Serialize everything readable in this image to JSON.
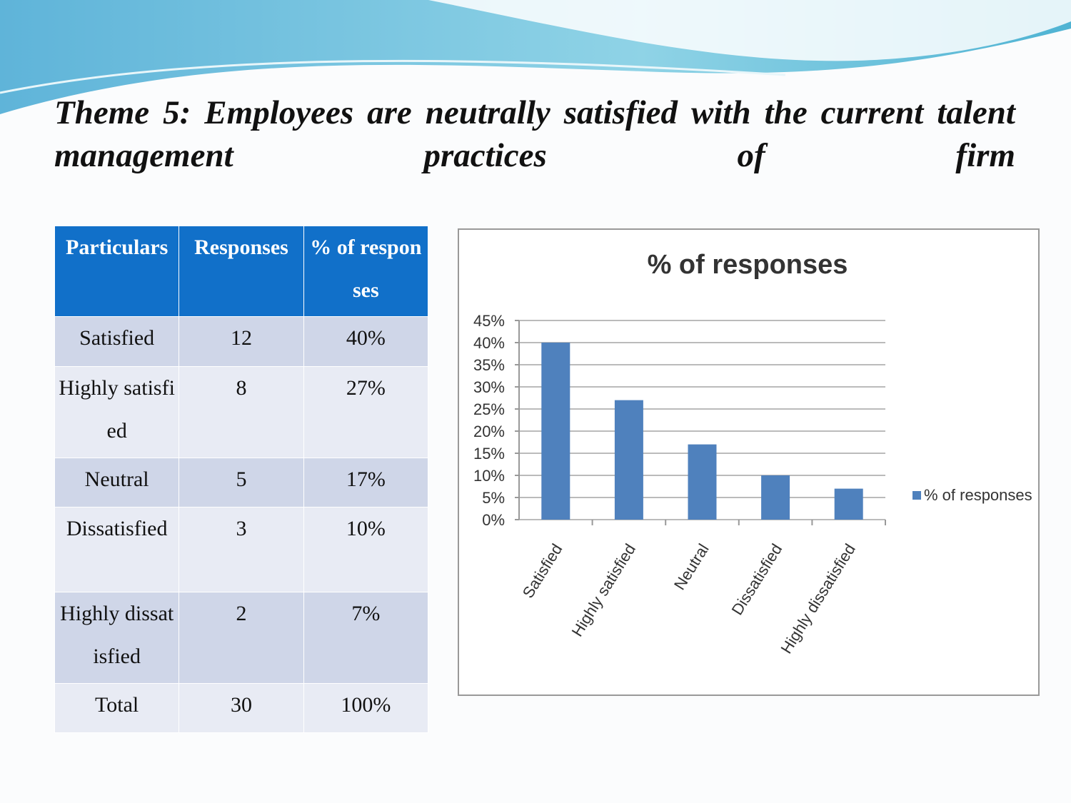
{
  "title": "Theme 5: Employees are neutrally satisfied with the current talent management practices of firm",
  "table": {
    "header": [
      "Particulars",
      "Responses",
      "% of responses"
    ],
    "rows": [
      [
        "Satisfied",
        "12",
        "40%"
      ],
      [
        "Highly satisfied",
        "8",
        "27%"
      ],
      [
        "Neutral",
        "5",
        "17%"
      ],
      [
        "Dissatisfied",
        "3",
        "10%"
      ],
      [
        "Highly dissatisfied",
        "2",
        "7%"
      ],
      [
        "Total",
        "30",
        "100%"
      ]
    ]
  },
  "chart_data": {
    "type": "bar",
    "title": "% of responses",
    "categories": [
      "Satisfied",
      "Highly satisfied",
      "Neutral",
      "Dissatisfied",
      "Highly dissatisfied"
    ],
    "series": [
      {
        "name": "% of responses",
        "color": "#4f81bd",
        "values": [
          40,
          27,
          17,
          10,
          7
        ]
      }
    ],
    "ylim": [
      0,
      45
    ],
    "yticks": [
      {
        "value": 0,
        "label": "0%"
      },
      {
        "value": 5,
        "label": "5%"
      },
      {
        "value": 10,
        "label": "10%"
      },
      {
        "value": 15,
        "label": "15%"
      },
      {
        "value": 20,
        "label": "20%"
      },
      {
        "value": 25,
        "label": "25%"
      },
      {
        "value": 30,
        "label": "30%"
      },
      {
        "value": 35,
        "label": "35%"
      },
      {
        "value": 40,
        "label": "40%"
      },
      {
        "value": 45,
        "label": "45%"
      }
    ],
    "grid": true,
    "legend": "right"
  }
}
